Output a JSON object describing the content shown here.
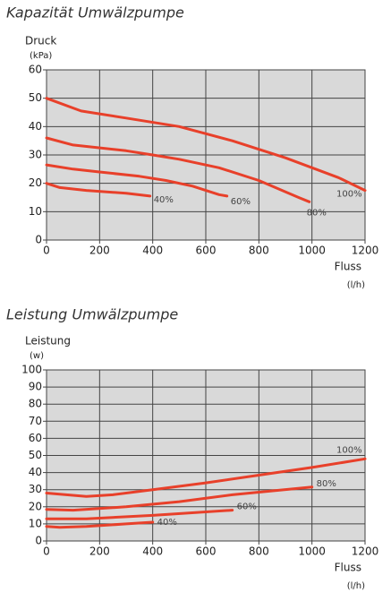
{
  "chart_data": [
    {
      "type": "line",
      "title": "Kapazität Umwälzpumpe",
      "y_label": "Druck",
      "y_unit": "(kPa)",
      "x_label": "Fluss",
      "x_unit": "(l/h)",
      "xlim": [
        0,
        1200
      ],
      "xticks": [
        0,
        200,
        400,
        600,
        800,
        1000,
        1200
      ],
      "ylim": [
        0,
        60
      ],
      "yticks": [
        0,
        10,
        20,
        30,
        40,
        50,
        60
      ],
      "grid": true,
      "series": [
        {
          "name": "100%",
          "color": "#e8402a",
          "x": [
            0,
            130,
            300,
            500,
            700,
            900,
            1100,
            1200
          ],
          "values": [
            50,
            45.5,
            43,
            40,
            35,
            29,
            22,
            17.5
          ]
        },
        {
          "name": "80%",
          "color": "#e8402a",
          "x": [
            0,
            100,
            300,
            400,
            500,
            650,
            800,
            950,
            990
          ],
          "values": [
            36,
            33.5,
            31.5,
            30,
            28.5,
            25.5,
            21,
            15,
            13.5
          ]
        },
        {
          "name": "60%",
          "color": "#e8402a",
          "x": [
            0,
            100,
            200,
            350,
            450,
            550,
            650,
            680
          ],
          "values": [
            26.5,
            25,
            24,
            22.5,
            21,
            19,
            16,
            15.5
          ]
        },
        {
          "name": "40%",
          "color": "#e8402a",
          "x": [
            0,
            50,
            150,
            300,
            390
          ],
          "values": [
            20,
            18.5,
            17.5,
            16.5,
            15.5
          ]
        }
      ]
    },
    {
      "type": "line",
      "title": "Leistung Umwälzpumpe",
      "y_label": "Leistung",
      "y_unit": "(w)",
      "x_label": "Fluss",
      "x_unit": "(l/h)",
      "xlim": [
        0,
        1200
      ],
      "xticks": [
        0,
        200,
        400,
        600,
        800,
        1000,
        1200
      ],
      "ylim": [
        0,
        100
      ],
      "yticks": [
        0,
        10,
        20,
        30,
        40,
        50,
        60,
        70,
        80,
        90,
        100
      ],
      "grid": true,
      "series": [
        {
          "name": "100%",
          "color": "#e8402a",
          "x": [
            0,
            150,
            250,
            400,
            600,
            800,
            1000,
            1200
          ],
          "values": [
            28,
            26,
            27,
            30,
            34,
            38.5,
            43,
            48
          ]
        },
        {
          "name": "80%",
          "color": "#e8402a",
          "x": [
            0,
            100,
            300,
            500,
            700,
            1000
          ],
          "values": [
            18.5,
            18,
            20,
            23,
            27,
            31.5
          ]
        },
        {
          "name": "60%",
          "color": "#e8402a",
          "x": [
            0,
            150,
            400,
            700
          ],
          "values": [
            13,
            13,
            15,
            18
          ]
        },
        {
          "name": "40%",
          "color": "#e8402a",
          "x": [
            0,
            50,
            150,
            300,
            400
          ],
          "values": [
            8.5,
            8,
            8.5,
            10,
            11
          ]
        }
      ]
    }
  ]
}
